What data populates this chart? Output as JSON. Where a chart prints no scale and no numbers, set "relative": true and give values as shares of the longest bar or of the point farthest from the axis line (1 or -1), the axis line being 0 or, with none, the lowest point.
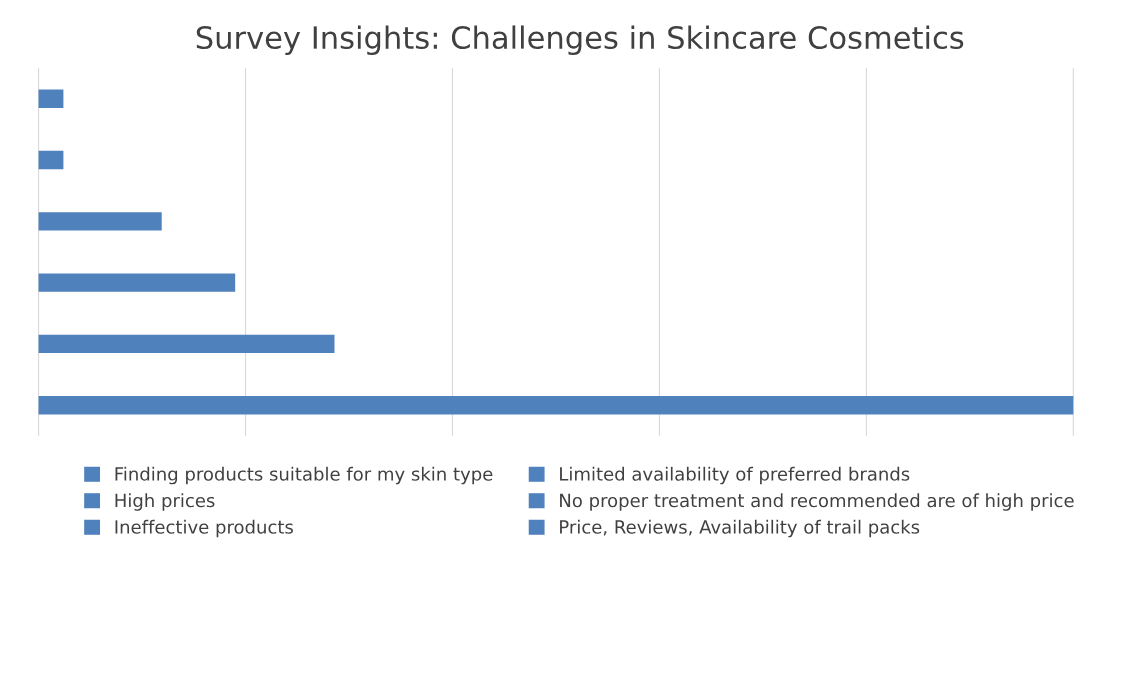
{
  "chart_data": {
    "type": "bar",
    "orientation": "horizontal",
    "relative": true,
    "stacked": true,
    "title": "Survey Insights: Challenges in Skincare Cosmetics",
    "categories": [
      null,
      null,
      null,
      null,
      null,
      null
    ],
    "series": [
      {
        "name": "Finding products suitable for my skin type",
        "color": "#4f81bd",
        "values": [
          null,
          null,
          null,
          null,
          null,
          1
        ]
      },
      {
        "name": "High prices",
        "color": "#4f81bd",
        "values": [
          null,
          null,
          null,
          null,
          0.286,
          null
        ]
      },
      {
        "name": "Ineffective products",
        "color": "#4f81bd",
        "values": [
          null,
          null,
          null,
          0.19,
          null,
          null
        ]
      },
      {
        "name": "Limited availability of preferred brands",
        "color": "#4f81bd",
        "values": [
          null,
          null,
          0.119,
          null,
          null,
          null
        ]
      },
      {
        "name": "No proper treatment and recommended are of high price",
        "color": "#4f81bd",
        "values": [
          null,
          0.024,
          null,
          null,
          null,
          null
        ]
      },
      {
        "name": "Price, Reviews, Availability of trail packs",
        "color": "#4f81bd",
        "values": [
          0.024,
          null,
          null,
          null,
          null,
          null
        ]
      }
    ],
    "grid": "x",
    "legend": "bottom"
  }
}
